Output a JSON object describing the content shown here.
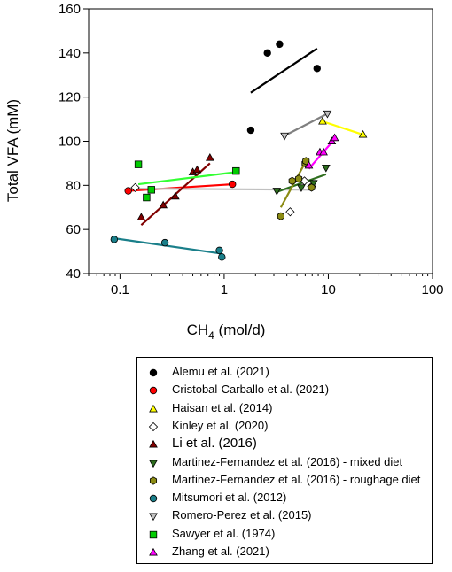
{
  "chart_data": {
    "type": "scatter",
    "x_scale": "log",
    "xlim": [
      0.05,
      100
    ],
    "ylim": [
      40,
      160
    ],
    "x_ticks": [
      "0.1",
      "1",
      "10",
      "100"
    ],
    "y_ticks": [
      "40",
      "60",
      "80",
      "100",
      "120",
      "140",
      "160"
    ],
    "xlabel_main": "CH",
    "xlabel_sub": "4",
    "xlabel_unit": " (mol/d)",
    "ylabel": "Total VFA (mM)",
    "grid": false,
    "legend_position": "below",
    "series": [
      {
        "name": "Alemu et al. (2021)",
        "marker": "circle",
        "color": "#000000",
        "line_color": "#000000",
        "points": [
          [
            1.8,
            105
          ],
          [
            2.6,
            140
          ],
          [
            3.4,
            144
          ],
          [
            7.8,
            133
          ]
        ],
        "fit": [
          [
            1.8,
            122
          ],
          [
            7.8,
            142
          ]
        ]
      },
      {
        "name": "Cristobal-Carballo et al. (2021)",
        "marker": "circle",
        "color": "#ff0000",
        "line_color": "#ff0000",
        "points": [
          [
            0.12,
            77.5
          ],
          [
            1.2,
            80.5
          ]
        ],
        "fit": [
          [
            0.12,
            77.5
          ],
          [
            1.2,
            80.5
          ]
        ]
      },
      {
        "name": "Haisan et al. (2014)",
        "marker": "triangle-up",
        "color": "#ffff00",
        "line_color": "#ffff00",
        "points": [
          [
            8.8,
            109
          ],
          [
            21.5,
            103
          ]
        ],
        "fit": [
          [
            8.8,
            109
          ],
          [
            21.5,
            103
          ]
        ]
      },
      {
        "name": "Kinley et al. (2020)",
        "marker": "diamond",
        "color": "#ffffff",
        "line_color": "#c0c0c0",
        "points": [
          [
            0.14,
            79
          ],
          [
            4.3,
            68
          ],
          [
            5.9,
            82
          ],
          [
            6.9,
            79.5
          ]
        ],
        "fit": [
          [
            0.14,
            78.5
          ],
          [
            6.9,
            78
          ]
        ]
      },
      {
        "name": "Li et al. (2016)",
        "marker": "triangle-up",
        "color": "#800000",
        "line_color": "#800000",
        "points": [
          [
            0.16,
            65.5
          ],
          [
            0.26,
            71
          ],
          [
            0.34,
            75
          ],
          [
            0.5,
            86
          ],
          [
            0.55,
            87
          ],
          [
            0.73,
            92.5
          ]
        ],
        "fit": [
          [
            0.16,
            62
          ],
          [
            0.73,
            90
          ]
        ]
      },
      {
        "name": "Martinez-Fernandez et al. (2016) - mixed diet",
        "marker": "triangle-down",
        "color": "#2e6e1e",
        "line_color": "#2e6e1e",
        "points": [
          [
            3.2,
            77.5
          ],
          [
            5.5,
            79
          ],
          [
            7.2,
            81
          ],
          [
            9.5,
            88
          ]
        ],
        "fit": [
          [
            3.2,
            77
          ],
          [
            9.5,
            85
          ]
        ]
      },
      {
        "name": "Martinez-Fernandez et al. (2016) - roughage diet",
        "marker": "hexagon",
        "color": "#8b8b14",
        "line_color": "#8b8b14",
        "points": [
          [
            3.5,
            66
          ],
          [
            4.5,
            82
          ],
          [
            5.2,
            83
          ],
          [
            6.0,
            90
          ],
          [
            6.1,
            91
          ],
          [
            6.9,
            79
          ]
        ],
        "fit": [
          [
            3.5,
            70
          ],
          [
            6.1,
            91
          ]
        ]
      },
      {
        "name": "Mitsumori et al. (2012)",
        "marker": "circle",
        "color": "#1a7f8a",
        "line_color": "#1a7f8a",
        "points": [
          [
            0.088,
            55.5
          ],
          [
            0.27,
            54
          ],
          [
            0.9,
            50.5
          ],
          [
            0.95,
            47.5
          ]
        ],
        "fit": [
          [
            0.088,
            56
          ],
          [
            0.95,
            49
          ]
        ]
      },
      {
        "name": "Romero-Perez et al. (2015)",
        "marker": "triangle-down",
        "color": "#c0c0c0",
        "line_color": "#808080",
        "points": [
          [
            3.8,
            102.5
          ],
          [
            9.8,
            112.5
          ]
        ],
        "fit": [
          [
            3.8,
            102.5
          ],
          [
            9.8,
            112.5
          ]
        ]
      },
      {
        "name": "Sawyer et al. (1974)",
        "marker": "square",
        "color": "#00cc00",
        "line_color": "#33ff33",
        "points": [
          [
            0.15,
            89.5
          ],
          [
            0.18,
            74.5
          ],
          [
            0.2,
            78
          ],
          [
            1.3,
            86.5
          ]
        ],
        "fit": [
          [
            0.15,
            80.5
          ],
          [
            1.3,
            86
          ]
        ]
      },
      {
        "name": "Zhang et al. (2021)",
        "marker": "triangle-up",
        "color": "#ff00ff",
        "line_color": "#ff00ff",
        "points": [
          [
            6.5,
            89
          ],
          [
            8.3,
            95
          ],
          [
            9.0,
            95
          ],
          [
            10.8,
            100
          ],
          [
            11.5,
            101.5
          ]
        ],
        "fit": [
          [
            6.5,
            87.5
          ],
          [
            11.5,
            101
          ]
        ]
      }
    ]
  }
}
